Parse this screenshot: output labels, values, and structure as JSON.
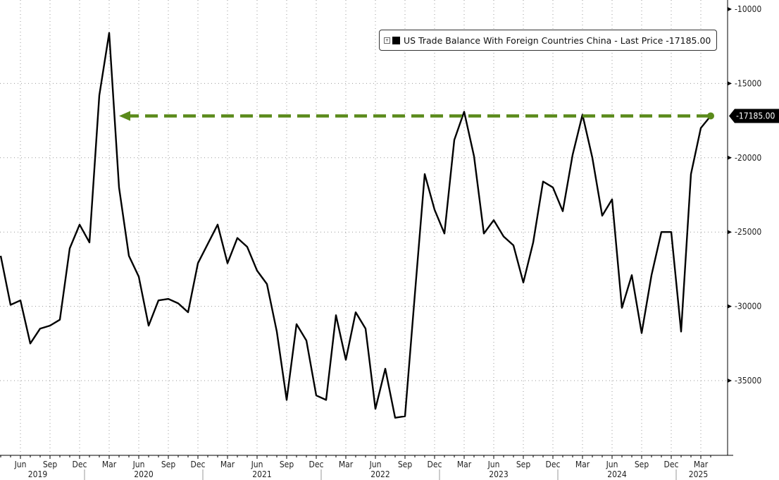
{
  "chart_data": {
    "type": "line",
    "title": "",
    "xlabel": "",
    "ylabel": "",
    "ylim": [
      -40000,
      -10000
    ],
    "y_ticks": [
      -10000,
      -15000,
      -20000,
      -25000,
      -30000,
      -35000
    ],
    "y_tick_labels": [
      "-10000",
      "-15000",
      "-20000",
      "-25000",
      "-30000",
      "-35000"
    ],
    "x_range": [
      "2019-04",
      "2025-04"
    ],
    "x_month_labels": [
      "Jun",
      "Sep",
      "Dec",
      "Mar",
      "Jun",
      "Sep",
      "Dec",
      "Mar",
      "Jun",
      "Sep",
      "Dec",
      "Mar",
      "Jun",
      "Sep",
      "Dec",
      "Mar",
      "Jun",
      "Sep",
      "Dec",
      "Mar",
      "Jun",
      "Sep",
      "Dec",
      "Mar"
    ],
    "x_year_labels": [
      "2019",
      "2020",
      "2021",
      "2022",
      "2023",
      "2024",
      "2025"
    ],
    "grid": true,
    "legend_position": "top-right",
    "series": [
      {
        "name": "US Trade Balance With Foreign Countries China",
        "color": "#000000",
        "start": "2019-04",
        "frequency": "monthly",
        "values": [
          -26600,
          -29900,
          -29600,
          -32500,
          -31500,
          -31300,
          -30900,
          -26100,
          -24500,
          -25700,
          -15800,
          -11600,
          -22000,
          -26600,
          -28000,
          -31300,
          -29600,
          -29500,
          -29800,
          -30400,
          -27100,
          -25800,
          -24500,
          -27100,
          -25400,
          -26000,
          -27600,
          -28500,
          -31700,
          -36300,
          -31200,
          -32300,
          -36000,
          -36300,
          -30600,
          -33600,
          -30400,
          -31500,
          -36900,
          -34200,
          -37500,
          -37400,
          -29200,
          -21100,
          -23500,
          -25100,
          -18800,
          -16900,
          -19900,
          -25100,
          -24200,
          -25300,
          -25900,
          -28400,
          -25700,
          -21600,
          -22000,
          -23600,
          -19800,
          -17100,
          -20000,
          -23900,
          -22800,
          -30100,
          -27900,
          -31800,
          -27900,
          -25000,
          -25000,
          -31700,
          -21100,
          -18000,
          -17185
        ]
      }
    ],
    "legend": {
      "label": "US Trade Balance With Foreign Countries China - Last Price -17185.00"
    },
    "last_price_label": "-17185.00",
    "reference_line": {
      "value": -17185,
      "from": "2020-04",
      "to": "2025-04",
      "color": "#5a8a1a",
      "style": "dashed-arrow"
    }
  }
}
